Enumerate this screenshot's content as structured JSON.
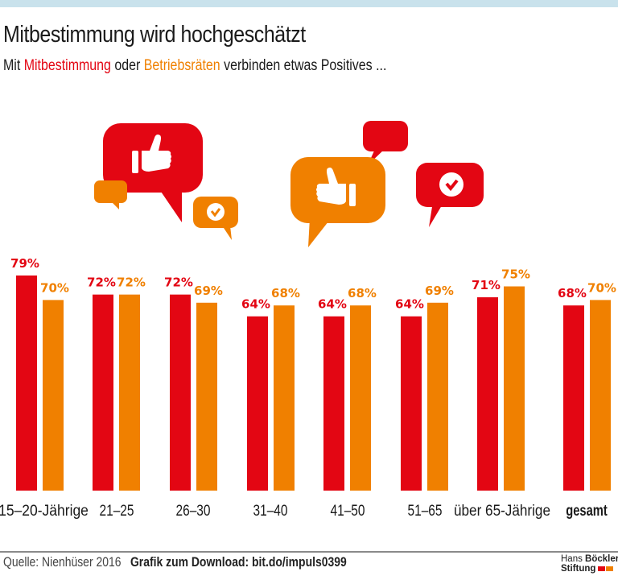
{
  "header": {
    "title": "Mitbestimmung wird hochgeschätzt",
    "subtitle_prefix": "Mit ",
    "subtitle_red": "Mitbestimmung",
    "subtitle_mid": " oder ",
    "subtitle_orange": "Betriebsräten",
    "subtitle_suffix": " verbinden etwas Positives ..."
  },
  "colors": {
    "red": "#e30613",
    "orange": "#f08000",
    "topband": "#c9e2ec"
  },
  "icons": [
    "speech-bubble-thumbs-up-icon",
    "speech-bubble-check-icon",
    "speech-bubble-icon"
  ],
  "chart_data": {
    "type": "bar",
    "title": "Mitbestimmung wird hochgeschätzt",
    "subtitle": "Mit Mitbestimmung oder Betriebsräten verbinden etwas Positives ...",
    "xlabel": "",
    "ylabel": "",
    "ylim": [
      0,
      100
    ],
    "grid": false,
    "categories": [
      "15–20-Jährige",
      "21–25",
      "26–30",
      "31–40",
      "41–50",
      "51–65",
      "über 65-Jährige",
      "gesamt"
    ],
    "series": [
      {
        "name": "Mitbestimmung",
        "color": "#e30613",
        "values": [
          79,
          72,
          72,
          64,
          64,
          64,
          71,
          68
        ],
        "labels": [
          "79%",
          "72%",
          "72%",
          "64%",
          "64%",
          "64%",
          "71%",
          "68%"
        ]
      },
      {
        "name": "Betriebsräten",
        "color": "#f08000",
        "values": [
          70,
          72,
          69,
          68,
          68,
          69,
          75,
          70
        ],
        "labels": [
          "70%",
          "72%",
          "69%",
          "68%",
          "68%",
          "69%",
          "75%",
          "70%"
        ]
      }
    ],
    "bold_category": "gesamt"
  },
  "footer": {
    "source": "Quelle: Nienhüser 2016",
    "download": "Grafik zum Download: bit.do/impuls0399",
    "logo_line1_a": "Hans ",
    "logo_line1_b": "Böckler",
    "logo_line2": "Stiftung"
  }
}
